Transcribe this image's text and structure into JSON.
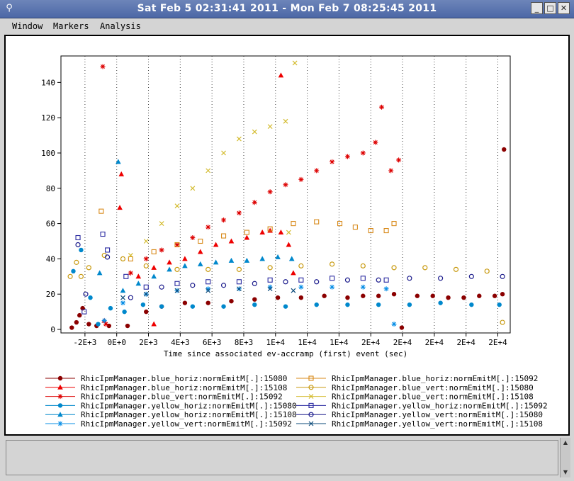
{
  "window": {
    "title": "Sat Feb  5 02:31:41 2011 - Mon Feb  7 08:25:45 2011",
    "minimize_glyph": "_",
    "maximize_glyph": "□",
    "close_glyph": "✕",
    "icon_glyph": "⚲"
  },
  "menu": {
    "items": [
      "Window",
      "Markers",
      "Analysis"
    ]
  },
  "status": {
    "text": ""
  },
  "chart_data": {
    "type": "scatter",
    "title": "",
    "xlabel": "Time since associated ev-accramp (first) event (sec)",
    "ylabel": "",
    "xlim": [
      -3500,
      25500
    ],
    "ylim": [
      -2,
      155
    ],
    "grid": {
      "x": true,
      "y": false
    },
    "x_ticks": [
      {
        "v": -1950,
        "label": "-2E+3"
      },
      {
        "v": 100,
        "label": "0E+0"
      },
      {
        "v": 2150,
        "label": "2E+3"
      },
      {
        "v": 4200,
        "label": "4E+3"
      },
      {
        "v": 6250,
        "label": "6E+3"
      },
      {
        "v": 8300,
        "label": "8E+3"
      },
      {
        "v": 10350,
        "label": "1E+4"
      },
      {
        "v": 12400,
        "label": "1E+4"
      },
      {
        "v": 14450,
        "label": "1E+4"
      },
      {
        "v": 16500,
        "label": "2E+4"
      },
      {
        "v": 18550,
        "label": "2E+4"
      },
      {
        "v": 20600,
        "label": "2E+4"
      },
      {
        "v": 22650,
        "label": "2E+4"
      },
      {
        "v": 24700,
        "label": "2E+4"
      }
    ],
    "y_ticks": [
      0,
      20,
      40,
      60,
      80,
      100,
      120,
      140
    ],
    "legend_position": "bottom",
    "series": [
      {
        "name": "RhicIpmManager.blue_horiz:normEmitM[.]:15080",
        "color": "#8b0000",
        "marker": "dot",
        "key": "bh80",
        "points": [
          [
            -2800,
            1
          ],
          [
            -2500,
            4
          ],
          [
            -2300,
            8
          ],
          [
            -2100,
            12
          ],
          [
            -1700,
            3
          ],
          [
            -1200,
            2
          ],
          [
            -400,
            2
          ],
          [
            800,
            2
          ],
          [
            2000,
            10
          ],
          [
            3000,
            13
          ],
          [
            4500,
            15
          ],
          [
            6000,
            15
          ],
          [
            7500,
            16
          ],
          [
            9000,
            17
          ],
          [
            10500,
            18
          ],
          [
            12000,
            18
          ],
          [
            13500,
            19
          ],
          [
            15000,
            18
          ],
          [
            16000,
            19
          ],
          [
            17000,
            19
          ],
          [
            18000,
            20
          ],
          [
            18500,
            1
          ],
          [
            19500,
            19
          ],
          [
            20500,
            19
          ],
          [
            21500,
            18
          ],
          [
            22500,
            18
          ],
          [
            23500,
            19
          ],
          [
            24500,
            19
          ],
          [
            25100,
            102
          ],
          [
            25000,
            20
          ]
        ]
      },
      {
        "name": "RhicIpmManager.blue_horiz:normEmitM[.]:15108",
        "color": "#ee0000",
        "marker": "triangle",
        "key": "bh08",
        "points": [
          [
            400,
            88
          ],
          [
            300,
            69
          ],
          [
            -700,
            5
          ],
          [
            1500,
            30
          ],
          [
            2500,
            3
          ],
          [
            2500,
            35
          ],
          [
            3500,
            38
          ],
          [
            4500,
            40
          ],
          [
            5500,
            44
          ],
          [
            6500,
            48
          ],
          [
            7500,
            50
          ],
          [
            8500,
            52
          ],
          [
            9500,
            55
          ],
          [
            10000,
            56
          ],
          [
            10700,
            55
          ],
          [
            10700,
            144
          ],
          [
            11200,
            48
          ],
          [
            11500,
            32
          ]
        ]
      },
      {
        "name": "RhicIpmManager.blue_vert:normEmitM[.]:15092",
        "color": "#dd0000",
        "marker": "asterisk",
        "key": "bv92",
        "points": [
          [
            -800,
            149
          ],
          [
            -600,
            3
          ],
          [
            1000,
            32
          ],
          [
            2000,
            40
          ],
          [
            3000,
            45
          ],
          [
            4000,
            48
          ],
          [
            5000,
            52
          ],
          [
            6000,
            58
          ],
          [
            7000,
            62
          ],
          [
            8000,
            66
          ],
          [
            9000,
            72
          ],
          [
            10000,
            78
          ],
          [
            11000,
            82
          ],
          [
            12000,
            85
          ],
          [
            13000,
            90
          ],
          [
            14000,
            95
          ],
          [
            15000,
            98
          ],
          [
            16000,
            100
          ],
          [
            16800,
            106
          ],
          [
            17200,
            126
          ],
          [
            17800,
            90
          ],
          [
            18300,
            96
          ]
        ]
      },
      {
        "name": "RhicIpmManager.yellow_horiz:normEmitM[.]:15080",
        "color": "#0088cc",
        "marker": "dot",
        "key": "yh80",
        "points": [
          [
            -2700,
            33
          ],
          [
            -2200,
            45
          ],
          [
            -1600,
            18
          ],
          [
            -1100,
            3
          ],
          [
            -300,
            12
          ],
          [
            600,
            10
          ],
          [
            1800,
            14
          ],
          [
            3000,
            13
          ],
          [
            5000,
            13
          ],
          [
            7000,
            13
          ],
          [
            9000,
            14
          ],
          [
            11000,
            13
          ],
          [
            13000,
            14
          ],
          [
            15000,
            14
          ],
          [
            17000,
            14
          ],
          [
            19000,
            14
          ],
          [
            21000,
            15
          ],
          [
            23000,
            14
          ],
          [
            24800,
            14
          ]
        ]
      },
      {
        "name": "RhicIpmManager.yellow_horiz:normEmitM[.]:15108",
        "color": "#0088cc",
        "marker": "triangle",
        "key": "yh08",
        "points": [
          [
            200,
            95
          ],
          [
            -1000,
            32
          ],
          [
            500,
            22
          ],
          [
            1500,
            26
          ],
          [
            2500,
            30
          ],
          [
            3500,
            34
          ],
          [
            4500,
            36
          ],
          [
            5500,
            37
          ],
          [
            6500,
            38
          ],
          [
            7500,
            39
          ],
          [
            8500,
            39
          ],
          [
            9500,
            40
          ],
          [
            10500,
            41
          ],
          [
            11400,
            40
          ]
        ]
      },
      {
        "name": "RhicIpmManager.yellow_vert:normEmitM[.]:15092",
        "color": "#0a8fe6",
        "marker": "asterisk",
        "key": "yv92",
        "points": [
          [
            -700,
            5
          ],
          [
            500,
            15
          ],
          [
            2000,
            20
          ],
          [
            4000,
            22
          ],
          [
            6000,
            23
          ],
          [
            8000,
            23
          ],
          [
            10000,
            24
          ],
          [
            12000,
            24
          ],
          [
            14000,
            24
          ],
          [
            16000,
            24
          ],
          [
            17500,
            23
          ],
          [
            18000,
            3
          ]
        ]
      },
      {
        "name": "RhicIpmManager.blue_horiz:normEmitM[.]:15092",
        "color": "#d88a1a",
        "marker": "square",
        "key": "bh92",
        "points": [
          [
            -900,
            67
          ],
          [
            1000,
            40
          ],
          [
            2500,
            44
          ],
          [
            4000,
            48
          ],
          [
            5500,
            50
          ],
          [
            7000,
            53
          ],
          [
            8500,
            55
          ],
          [
            10000,
            57
          ],
          [
            11500,
            60
          ],
          [
            13000,
            61
          ],
          [
            14500,
            60
          ],
          [
            15500,
            58
          ],
          [
            16500,
            56
          ],
          [
            17500,
            56
          ],
          [
            18000,
            60
          ]
        ]
      },
      {
        "name": "RhicIpmManager.blue_vert:normEmitM[.]:15080",
        "color": "#c89a10",
        "marker": "circle",
        "key": "bv80",
        "points": [
          [
            -2900,
            30
          ],
          [
            -2500,
            38
          ],
          [
            -2200,
            30
          ],
          [
            -1700,
            35
          ],
          [
            -700,
            42
          ],
          [
            500,
            40
          ],
          [
            2000,
            36
          ],
          [
            4000,
            34
          ],
          [
            6000,
            34
          ],
          [
            8000,
            34
          ],
          [
            10000,
            35
          ],
          [
            12000,
            36
          ],
          [
            14000,
            37
          ],
          [
            16000,
            36
          ],
          [
            18000,
            35
          ],
          [
            20000,
            35
          ],
          [
            22000,
            34
          ],
          [
            24000,
            33
          ],
          [
            25000,
            4
          ]
        ]
      },
      {
        "name": "RhicIpmManager.blue_vert:normEmitM[.]:15108",
        "color": "#d4bc30",
        "marker": "cross",
        "key": "bv08",
        "points": [
          [
            1000,
            42
          ],
          [
            2000,
            50
          ],
          [
            3000,
            60
          ],
          [
            4000,
            70
          ],
          [
            5000,
            80
          ],
          [
            6000,
            90
          ],
          [
            7000,
            100
          ],
          [
            8000,
            108
          ],
          [
            9000,
            112
          ],
          [
            10000,
            115
          ],
          [
            11000,
            118
          ],
          [
            11600,
            151
          ],
          [
            11200,
            55
          ]
        ]
      },
      {
        "name": "RhicIpmManager.yellow_horiz:normEmitM[.]:15092",
        "color": "#2a2aa0",
        "marker": "square",
        "key": "yh92",
        "points": [
          [
            -2400,
            52
          ],
          [
            -2000,
            10
          ],
          [
            -800,
            54
          ],
          [
            -500,
            45
          ],
          [
            700,
            30
          ],
          [
            2000,
            24
          ],
          [
            4000,
            26
          ],
          [
            6000,
            27
          ],
          [
            8000,
            27
          ],
          [
            10000,
            28
          ],
          [
            12000,
            28
          ],
          [
            14000,
            29
          ],
          [
            16000,
            29
          ],
          [
            17500,
            28
          ]
        ]
      },
      {
        "name": "RhicIpmManager.yellow_vert:normEmitM[.]:15080",
        "color": "#1c1c8c",
        "marker": "circle",
        "key": "yv80",
        "points": [
          [
            -2400,
            48
          ],
          [
            -1900,
            20
          ],
          [
            -500,
            41
          ],
          [
            1000,
            18
          ],
          [
            3000,
            24
          ],
          [
            5000,
            25
          ],
          [
            7000,
            25
          ],
          [
            9000,
            26
          ],
          [
            11000,
            27
          ],
          [
            13000,
            27
          ],
          [
            15000,
            28
          ],
          [
            17000,
            28
          ],
          [
            19000,
            29
          ],
          [
            21000,
            29
          ],
          [
            23000,
            30
          ],
          [
            25000,
            30
          ]
        ]
      },
      {
        "name": "RhicIpmManager.yellow_vert:normEmitM[.]:15108",
        "color": "#0b4a7a",
        "marker": "cross",
        "key": "yv08",
        "points": [
          [
            500,
            18
          ],
          [
            2000,
            20
          ],
          [
            4000,
            22
          ],
          [
            6000,
            22
          ],
          [
            8000,
            23
          ],
          [
            10000,
            23
          ],
          [
            11500,
            22
          ]
        ]
      }
    ]
  }
}
